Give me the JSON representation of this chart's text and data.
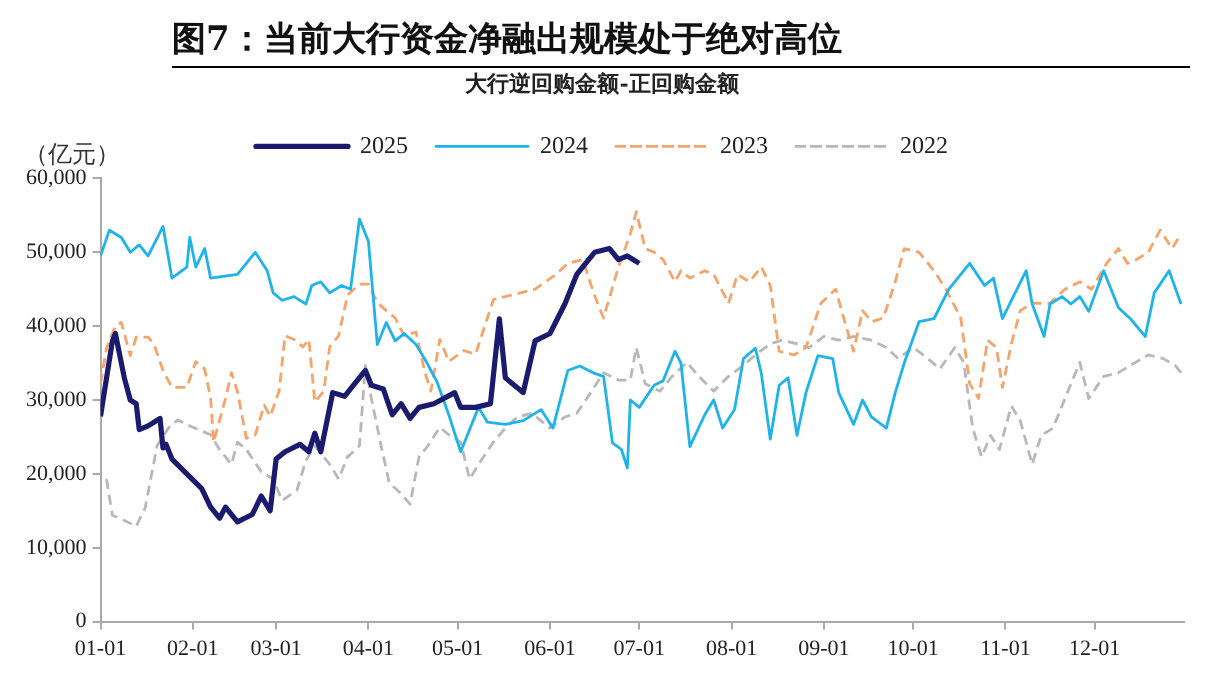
{
  "chart_data": {
    "type": "line",
    "title": "图7：当前大行资金净融出规模处于绝对高位",
    "subtitle": "大行逆回购金额-正回购金额",
    "ylabel": "（亿元）",
    "xlim": [
      "--01-01",
      "--12-31"
    ],
    "xticks": [
      {
        "value": "--01-01",
        "label": "01-01"
      },
      {
        "value": "--02-01",
        "label": "02-01"
      },
      {
        "value": "--03-01",
        "label": "03-01"
      },
      {
        "value": "--04-01",
        "label": "04-01"
      },
      {
        "value": "--05-01",
        "label": "05-01"
      },
      {
        "value": "--06-01",
        "label": "06-01"
      },
      {
        "value": "--07-01",
        "label": "07-01"
      },
      {
        "value": "--08-01",
        "label": "08-01"
      },
      {
        "value": "--09-01",
        "label": "09-01"
      },
      {
        "value": "--10-01",
        "label": "10-01"
      },
      {
        "value": "--11-01",
        "label": "11-01"
      },
      {
        "value": "--12-01",
        "label": "12-01"
      }
    ],
    "ylim": [
      0,
      60000
    ],
    "yticks": [
      0,
      {
        "value": 10000,
        "label": "10,000"
      },
      {
        "value": 20000,
        "label": "20,000"
      },
      {
        "value": 30000,
        "label": "30,000"
      },
      {
        "value": 40000,
        "label": "40,000"
      },
      {
        "value": 50000,
        "label": "50,000"
      },
      {
        "value": 60000,
        "label": "60,000"
      }
    ],
    "grid": false,
    "legend": "top",
    "marker": "none",
    "series": [
      {
        "name": "2025",
        "color": "#1a1a6e",
        "line_style": "solid",
        "x": [
          "--01-01",
          "--01-05",
          "--01-06",
          "--01-09",
          "--01-11",
          "--01-13",
          "--01-14",
          "--01-17",
          "--01-21",
          "--01-22",
          "--01-23",
          "--01-25",
          "--01-30",
          "--02-04",
          "--02-07",
          "--02-10",
          "--02-12",
          "--02-16",
          "--02-21",
          "--02-24",
          "--02-27",
          "--03-01",
          "--03-04",
          "--03-09",
          "--03-12",
          "--03-14",
          "--03-16",
          "--03-20",
          "--03-24",
          "--03-27",
          "--03-31",
          "--04-02",
          "--04-06",
          "--04-09",
          "--04-12",
          "--04-15",
          "--04-18",
          "--04-23",
          "--04-30",
          "--05-02",
          "--05-07",
          "--05-12",
          "--05-15",
          "--05-17",
          "--05-23",
          "--05-27",
          "--06-01",
          "--06-06",
          "--06-10",
          "--06-16",
          "--06-21",
          "--06-24",
          "--06-27",
          "--07-01"
        ],
        "values": [
          27800,
          38000,
          39000,
          33000,
          30000,
          29500,
          26000,
          26500,
          27500,
          23500,
          24000,
          22000,
          20000,
          18000,
          15500,
          14000,
          15500,
          13500,
          14500,
          17000,
          15000,
          22000,
          23000,
          24000,
          23000,
          25500,
          23000,
          31000,
          30500,
          32000,
          34000,
          32000,
          31500,
          28000,
          29500,
          27500,
          29000,
          29500,
          31000,
          29000,
          29000,
          29500,
          41000,
          33000,
          31000,
          38000,
          39000,
          43000,
          47000,
          50000,
          50500,
          49000,
          49500,
          48500
        ]
      },
      {
        "name": "2024",
        "color": "#1fb3ec",
        "line_style": "solid",
        "x": [
          "--01-01",
          "--01-04",
          "--01-08",
          "--01-11",
          "--01-14",
          "--01-17",
          "--01-22",
          "--01-25",
          "--01-30",
          "--01-31",
          "--02-02",
          "--02-05",
          "--02-07",
          "--02-16",
          "--02-22",
          "--02-26",
          "--02-28",
          "--03-03",
          "--03-07",
          "--03-11",
          "--03-13",
          "--03-16",
          "--03-19",
          "--03-23",
          "--03-26",
          "--03-29",
          "--04-01",
          "--04-04",
          "--04-07",
          "--04-10",
          "--04-13",
          "--04-17",
          "--04-20",
          "--04-24",
          "--04-28",
          "--05-02",
          "--05-08",
          "--05-11",
          "--05-17",
          "--05-23",
          "--05-29",
          "--06-02",
          "--06-07",
          "--06-11",
          "--06-16",
          "--06-19",
          "--06-22",
          "--06-25",
          "--06-27",
          "--06-28",
          "--07-01",
          "--07-06",
          "--07-09",
          "--07-13",
          "--07-15",
          "--07-18",
          "--07-23",
          "--07-26",
          "--07-29",
          "--08-02",
          "--08-05",
          "--08-09",
          "--08-11",
          "--08-14",
          "--08-17",
          "--08-20",
          "--08-23",
          "--08-26",
          "--08-30",
          "--09-04",
          "--09-06",
          "--09-11",
          "--09-14",
          "--09-17",
          "--09-22",
          "--09-25",
          "--09-28",
          "--10-03",
          "--10-08",
          "--10-13",
          "--10-20",
          "--10-25",
          "--10-28",
          "--10-31",
          "--11-03",
          "--11-08",
          "--11-10",
          "--11-14",
          "--11-16",
          "--11-20",
          "--11-23",
          "--11-26",
          "--11-29",
          "--12-04",
          "--12-09",
          "--12-13",
          "--12-18",
          "--12-21",
          "--12-26",
          "--12-30"
        ],
        "values": [
          49500,
          53000,
          52000,
          50000,
          51000,
          49500,
          53500,
          46500,
          48000,
          52000,
          48000,
          50500,
          46500,
          47000,
          50000,
          47500,
          44500,
          43500,
          44000,
          43000,
          45500,
          46000,
          44500,
          45500,
          45000,
          54500,
          51500,
          37500,
          40500,
          38000,
          39000,
          37500,
          35500,
          32500,
          28000,
          23000,
          29000,
          27000,
          26700,
          27200,
          28700,
          26200,
          34000,
          34600,
          33600,
          33200,
          24200,
          23300,
          20800,
          30000,
          29000,
          32000,
          32600,
          36600,
          35000,
          23700,
          28000,
          30000,
          26200,
          28700,
          35600,
          37000,
          33600,
          24700,
          32000,
          33000,
          25200,
          31000,
          36000,
          35600,
          31000,
          26700,
          30000,
          27700,
          26200,
          31000,
          35000,
          40600,
          41000,
          45000,
          48500,
          45500,
          46500,
          41000,
          43500,
          47500,
          43000,
          38600,
          43000,
          44000,
          43000,
          44000,
          42000,
          47500,
          42500,
          41000,
          38600,
          44500,
          47500,
          43000
        ]
      },
      {
        "name": "2023",
        "color": "#f7a46a",
        "line_style": "dashed",
        "x": [
          "--01-01",
          "--01-03",
          "--01-06",
          "--01-08",
          "--01-11",
          "--01-13",
          "--01-17",
          "--01-19",
          "--01-22",
          "--01-25",
          "--01-30",
          "--02-02",
          "--02-05",
          "--02-07",
          "--02-08",
          "--02-12",
          "--02-14",
          "--02-16",
          "--02-19",
          "--02-22",
          "--02-25",
          "--02-27",
          "--03-02",
          "--03-04",
          "--03-07",
          "--03-10",
          "--03-12",
          "--03-14",
          "--03-17",
          "--03-19",
          "--03-22",
          "--03-25",
          "--03-29",
          "--04-01",
          "--04-04",
          "--04-07",
          "--04-10",
          "--04-13",
          "--04-17",
          "--04-20",
          "--04-22",
          "--04-25",
          "--04-28",
          "--05-03",
          "--05-07",
          "--05-13",
          "--05-18",
          "--05-23",
          "--05-27",
          "--06-03",
          "--06-07",
          "--06-12",
          "--06-16",
          "--06-19",
          "--06-24",
          "--06-28",
          "--06-30",
          "--07-03",
          "--07-06",
          "--07-09",
          "--07-13",
          "--07-15",
          "--07-18",
          "--07-23",
          "--07-26",
          "--07-31",
          "--08-03",
          "--08-07",
          "--08-11",
          "--08-14",
          "--08-17",
          "--08-22",
          "--08-26",
          "--08-31",
          "--09-05",
          "--09-08",
          "--09-11",
          "--09-14",
          "--09-17",
          "--09-21",
          "--09-25",
          "--09-28",
          "--10-03",
          "--10-08",
          "--10-12",
          "--10-17",
          "--10-20",
          "--10-23",
          "--10-26",
          "--10-29",
          "--10-31",
          "--11-03",
          "--11-06",
          "--11-10",
          "--11-16",
          "--11-21",
          "--11-26",
          "--11-30",
          "--12-05",
          "--12-09",
          "--12-12",
          "--12-15",
          "--12-19",
          "--12-23",
          "--12-27",
          "--12-30"
        ],
        "values": [
          32200,
          37000,
          40000,
          40500,
          36000,
          38500,
          38500,
          37500,
          34000,
          31700,
          31700,
          35200,
          34200,
          30200,
          24300,
          30200,
          33700,
          31200,
          24800,
          25300,
          29300,
          27800,
          31200,
          38700,
          38200,
          37200,
          38200,
          29700,
          31200,
          37200,
          38700,
          44200,
          45700,
          45700,
          43200,
          42100,
          41100,
          38700,
          39200,
          33700,
          31200,
          38200,
          35200,
          36700,
          36200,
          43600,
          44100,
          44600,
          45000,
          47000,
          48500,
          49000,
          44100,
          41100,
          48000,
          52500,
          55500,
          50500,
          50000,
          49000,
          46000,
          47500,
          46500,
          47500,
          47000,
          43100,
          47000,
          46000,
          48000,
          45500,
          36600,
          36100,
          37100,
          43100,
          45000,
          40600,
          36600,
          42100,
          40600,
          41100,
          46000,
          50500,
          50000,
          47500,
          45000,
          41100,
          32200,
          30200,
          38100,
          37100,
          31700,
          37600,
          42100,
          43100,
          43100,
          45000,
          46000,
          45000,
          48500,
          50500,
          48500,
          49000,
          50000,
          53000,
          50500,
          52500
        ]
      },
      {
        "name": "2022",
        "color": "#b8b8b8",
        "line_style": "dashed",
        "x": [
          "--01-03",
          "--01-05",
          "--01-08",
          "--01-13",
          "--01-16",
          "--01-20",
          "--01-24",
          "--01-27",
          "--02-01",
          "--02-07",
          "--02-10",
          "--02-14",
          "--02-16",
          "--02-19",
          "--02-24",
          "--02-28",
          "--03-03",
          "--03-08",
          "--03-11",
          "--03-14",
          "--03-19",
          "--03-22",
          "--03-25",
          "--03-29",
          "--03-31",
          "--04-02",
          "--04-05",
          "--04-08",
          "--04-12",
          "--04-15",
          "--04-18",
          "--04-21",
          "--04-25",
          "--04-28",
          "--05-02",
          "--05-05",
          "--05-08",
          "--05-13",
          "--05-17",
          "--05-21",
          "--05-26",
          "--06-01",
          "--06-06",
          "--06-10",
          "--06-15",
          "--06-19",
          "--06-24",
          "--06-28",
          "--06-30",
          "--07-03",
          "--07-08",
          "--07-12",
          "--07-17",
          "--07-21",
          "--07-26",
          "--07-31",
          "--08-05",
          "--08-09",
          "--08-14",
          "--08-18",
          "--08-23",
          "--08-27",
          "--09-01",
          "--09-06",
          "--09-11",
          "--09-17",
          "--09-22",
          "--09-26",
          "--10-01",
          "--10-06",
          "--10-10",
          "--10-15",
          "--10-18",
          "--10-21",
          "--10-24",
          "--10-27",
          "--10-30",
          "--11-03",
          "--11-06",
          "--11-10",
          "--11-13",
          "--11-17",
          "--11-21",
          "--11-26",
          "--11-29",
          "--12-04",
          "--12-09",
          "--12-13",
          "--12-19",
          "--12-24",
          "--12-28",
          "--12-31"
        ],
        "values": [
          19300,
          14400,
          13900,
          12900,
          15400,
          23800,
          26300,
          27300,
          26300,
          25300,
          23300,
          21300,
          24300,
          23300,
          20300,
          19300,
          16400,
          17800,
          21800,
          23800,
          21300,
          19300,
          22300,
          23800,
          34700,
          30200,
          24300,
          18800,
          17300,
          15900,
          22300,
          23800,
          26300,
          25300,
          24300,
          19300,
          21300,
          24300,
          26200,
          27700,
          28200,
          26200,
          27700,
          28200,
          31200,
          33700,
          32700,
          32700,
          37100,
          32200,
          31200,
          33200,
          35100,
          33200,
          31200,
          33200,
          34700,
          36100,
          37600,
          38100,
          37600,
          37100,
          38600,
          38100,
          38600,
          38100,
          37100,
          35600,
          37100,
          35600,
          34200,
          37100,
          35100,
          26200,
          22300,
          25200,
          23300,
          29200,
          27200,
          21300,
          25200,
          26200,
          30200,
          35100,
          30200,
          33200,
          33700,
          34700,
          36100,
          35600,
          34700,
          33200
        ]
      }
    ]
  }
}
